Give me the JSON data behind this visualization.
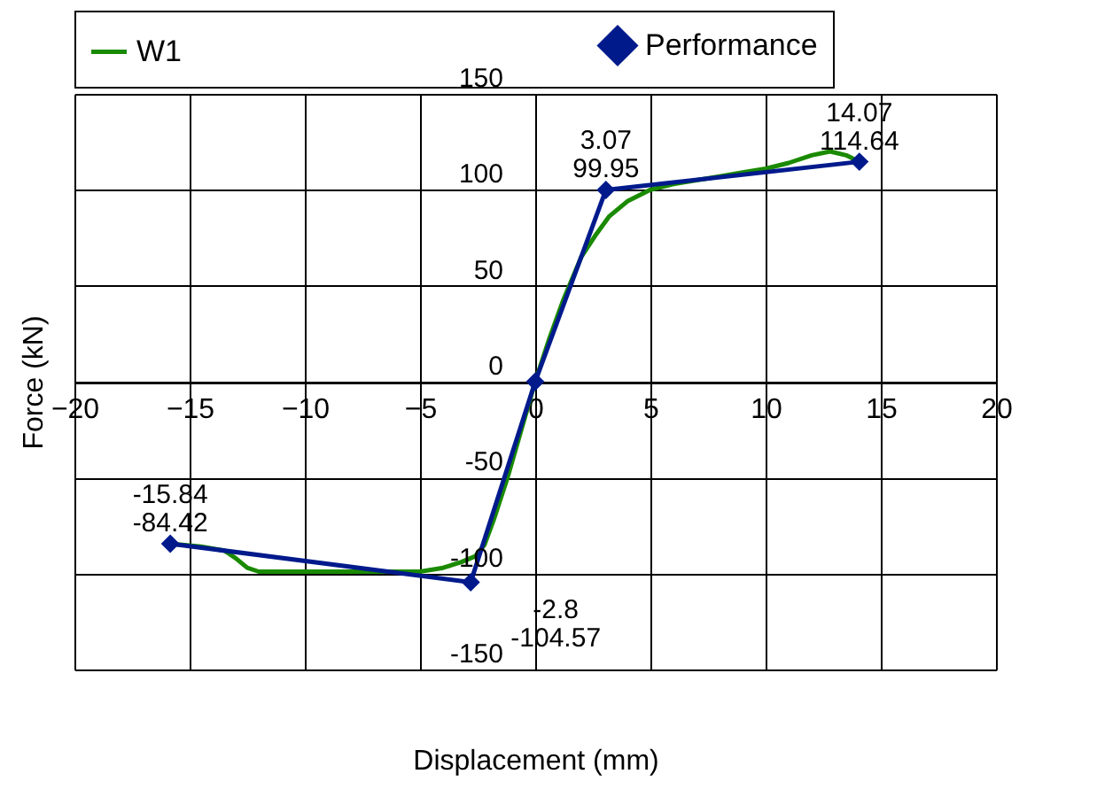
{
  "chart_data": {
    "type": "line",
    "xlabel": "Displacement (mm)",
    "ylabel": "Force (kN)",
    "xlim": [
      -20,
      20
    ],
    "xticks": [
      -20,
      -15,
      -10,
      -5,
      0,
      5,
      10,
      15,
      20
    ],
    "ylim": [
      -150,
      150
    ],
    "yticks": [
      -150,
      -100,
      -50,
      0,
      50,
      100,
      150
    ],
    "grid": true,
    "legend": "top",
    "series": [
      {
        "name": "W1",
        "color": "#1a8a00",
        "marker": "none",
        "x": [
          -15.84,
          -14.5,
          -13.5,
          -13,
          -12.5,
          -12,
          -10,
          -8,
          -6,
          -5,
          -4,
          -3.2,
          -2.6,
          -2.2,
          -1.8,
          -1.2,
          -0.6,
          0,
          0.6,
          1.2,
          2,
          2.6,
          3.2,
          4,
          5,
          6,
          7,
          8,
          9,
          10,
          11,
          12,
          12.8,
          13.5,
          14.07
        ],
        "values": [
          -84.4,
          -86,
          -88,
          -92,
          -97,
          -99,
          -99,
          -99,
          -99,
          -99,
          -97,
          -94,
          -91,
          -85,
          -72,
          -50,
          -25,
          0,
          22,
          42,
          65,
          76,
          86,
          94,
          100,
          103,
          105,
          107,
          109,
          111,
          114,
          118,
          120,
          118,
          114.6
        ]
      },
      {
        "name": "Performance",
        "color": "#001a8c",
        "marker": "diamond",
        "x": [
          -15.84,
          -2.8,
          0,
          3.07,
          14.07
        ],
        "values": [
          -84.42,
          -104.57,
          0,
          99.95,
          114.64
        ]
      }
    ],
    "annotations": [
      {
        "text": "-15.84\n-84.42",
        "x": -15.84,
        "y": -84.42
      },
      {
        "text": "-2.8\n-104.57",
        "x": -2.8,
        "y": -104.57
      },
      {
        "text": "3.07\n99.95",
        "x": 3.07,
        "y": 99.95
      },
      {
        "text": "14.07\n114.64",
        "x": 14.07,
        "y": 114.64
      }
    ]
  }
}
